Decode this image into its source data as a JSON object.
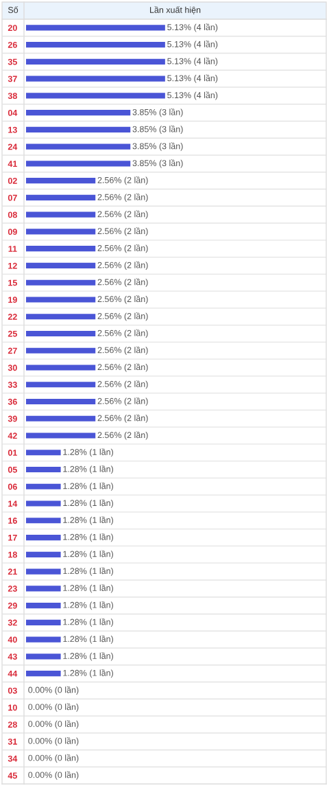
{
  "chart_data": {
    "type": "bar",
    "orientation": "horizontal",
    "ylabel": "Số",
    "xlabel": "Lần xuất hiện",
    "tick_labels": "y",
    "color": "#4a55d6",
    "categories": [
      "20",
      "26",
      "35",
      "37",
      "38",
      "04",
      "13",
      "24",
      "41",
      "02",
      "07",
      "08",
      "09",
      "11",
      "12",
      "15",
      "19",
      "22",
      "25",
      "27",
      "30",
      "33",
      "36",
      "39",
      "42",
      "01",
      "05",
      "06",
      "14",
      "16",
      "17",
      "18",
      "21",
      "23",
      "29",
      "32",
      "40",
      "43",
      "44",
      "03",
      "10",
      "28",
      "31",
      "34",
      "45"
    ],
    "values": [
      5.13,
      5.13,
      5.13,
      5.13,
      5.13,
      3.85,
      3.85,
      3.85,
      3.85,
      2.56,
      2.56,
      2.56,
      2.56,
      2.56,
      2.56,
      2.56,
      2.56,
      2.56,
      2.56,
      2.56,
      2.56,
      2.56,
      2.56,
      2.56,
      2.56,
      1.28,
      1.28,
      1.28,
      1.28,
      1.28,
      1.28,
      1.28,
      1.28,
      1.28,
      1.28,
      1.28,
      1.28,
      1.28,
      1.28,
      0,
      0,
      0,
      0,
      0,
      0
    ],
    "value_labels": [
      "5.13% (4 lần)",
      "5.13% (4 lần)",
      "5.13% (4 lần)",
      "5.13% (4 lần)",
      "5.13% (4 lần)",
      "3.85% (3 lần)",
      "3.85% (3 lần)",
      "3.85% (3 lần)",
      "3.85% (3 lần)",
      "2.56% (2 lần)",
      "2.56% (2 lần)",
      "2.56% (2 lần)",
      "2.56% (2 lần)",
      "2.56% (2 lần)",
      "2.56% (2 lần)",
      "2.56% (2 lần)",
      "2.56% (2 lần)",
      "2.56% (2 lần)",
      "2.56% (2 lần)",
      "2.56% (2 lần)",
      "2.56% (2 lần)",
      "2.56% (2 lần)",
      "2.56% (2 lần)",
      "2.56% (2 lần)",
      "2.56% (2 lần)",
      "1.28% (1 lần)",
      "1.28% (1 lần)",
      "1.28% (1 lần)",
      "1.28% (1 lần)",
      "1.28% (1 lần)",
      "1.28% (1 lần)",
      "1.28% (1 lần)",
      "1.28% (1 lần)",
      "1.28% (1 lần)",
      "1.28% (1 lần)",
      "1.28% (1 lần)",
      "1.28% (1 lần)",
      "1.28% (1 lần)",
      "1.28% (1 lần)",
      "0.00% (0 lần)",
      "0.00% (0 lần)",
      "0.00% (0 lần)",
      "0.00% (0 lần)",
      "0.00% (0 lần)",
      "0.00% (0 lần)"
    ]
  }
}
